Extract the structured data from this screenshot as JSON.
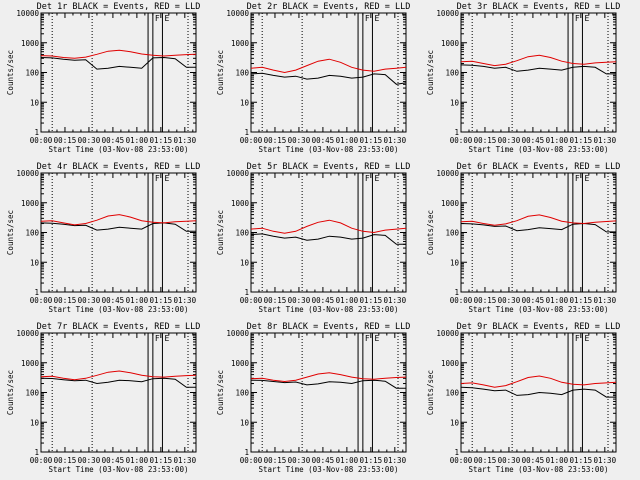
{
  "chart_data": [
    {
      "type": "line",
      "title": "Det 1r BLACK = Events, RED = LLD",
      "xlabel": "Start Time (03-Nov-08 23:53:00)",
      "ylabel": "Counts/sec",
      "log_y": true,
      "ylim": [
        1,
        10000
      ],
      "xlim_minutes": [
        0,
        97
      ],
      "x_ticks": [
        "00:00",
        "00:15",
        "00:30",
        "00:45",
        "01:00",
        "01:15",
        "01:30"
      ],
      "y_ticks": [
        "1",
        "10",
        "100",
        "1000",
        "10000"
      ],
      "markers": [
        "F",
        "E"
      ],
      "series": [
        {
          "color": "#000000",
          "x": [
            0,
            7,
            14,
            21,
            28,
            35,
            42,
            49,
            56,
            63,
            70,
            77,
            84,
            91,
            97
          ],
          "values": [
            320,
            310,
            280,
            260,
            270,
            130,
            140,
            160,
            150,
            140,
            310,
            320,
            290,
            150,
            150
          ]
        },
        {
          "color": "#e00000",
          "x": [
            0,
            7,
            14,
            21,
            28,
            35,
            42,
            49,
            56,
            63,
            70,
            77,
            84,
            91,
            97
          ],
          "values": [
            370,
            360,
            320,
            300,
            330,
            410,
            520,
            560,
            500,
            420,
            380,
            360,
            380,
            400,
            410
          ]
        }
      ]
    },
    {
      "type": "line",
      "title": "Det 2r BLACK = Events, RED = LLD",
      "xlabel": "Start Time (03-Nov-08 23:53:00)",
      "ylabel": "Counts/sec",
      "log_y": true,
      "ylim": [
        1,
        10000
      ],
      "xlim_minutes": [
        0,
        97
      ],
      "x_ticks": [
        "00:00",
        "00:15",
        "00:30",
        "00:45",
        "01:00",
        "01:15",
        "01:30"
      ],
      "y_ticks": [
        "1",
        "10",
        "100",
        "1000",
        "10000"
      ],
      "markers": [
        "F",
        "E"
      ],
      "series": [
        {
          "color": "#000000",
          "x": [
            0,
            7,
            14,
            21,
            28,
            35,
            42,
            49,
            56,
            63,
            70,
            77,
            84,
            91,
            97
          ],
          "values": [
            90,
            95,
            80,
            70,
            75,
            60,
            65,
            80,
            75,
            65,
            70,
            90,
            85,
            40,
            45
          ]
        },
        {
          "color": "#e00000",
          "x": [
            0,
            7,
            14,
            21,
            28,
            35,
            42,
            49,
            56,
            63,
            70,
            77,
            84,
            91,
            97
          ],
          "values": [
            140,
            150,
            120,
            100,
            120,
            170,
            240,
            280,
            220,
            150,
            120,
            110,
            130,
            140,
            150
          ]
        }
      ]
    },
    {
      "type": "line",
      "title": "Det 3r BLACK = Events, RED = LLD",
      "xlabel": "Start Time (03-Nov-08 23:53:00)",
      "ylabel": "Counts/sec",
      "log_y": true,
      "ylim": [
        1,
        10000
      ],
      "xlim_minutes": [
        0,
        97
      ],
      "x_ticks": [
        "00:00",
        "00:15",
        "00:30",
        "00:45",
        "01:00",
        "01:15",
        "01:30"
      ],
      "y_ticks": [
        "1",
        "10",
        "100",
        "1000",
        "10000"
      ],
      "markers": [
        "F",
        "E"
      ],
      "series": [
        {
          "color": "#000000",
          "x": [
            0,
            7,
            14,
            21,
            28,
            35,
            42,
            49,
            56,
            63,
            70,
            77,
            84,
            91,
            97
          ],
          "values": [
            180,
            175,
            160,
            140,
            150,
            110,
            120,
            140,
            130,
            120,
            150,
            160,
            150,
            90,
            90
          ]
        },
        {
          "color": "#e00000",
          "x": [
            0,
            7,
            14,
            21,
            28,
            35,
            42,
            49,
            56,
            63,
            70,
            77,
            84,
            91,
            97
          ],
          "values": [
            230,
            240,
            200,
            170,
            190,
            250,
            340,
            380,
            320,
            240,
            200,
            190,
            210,
            220,
            230
          ]
        }
      ]
    },
    {
      "type": "line",
      "title": "Det 4r BLACK = Events, RED = LLD",
      "xlabel": "Start Time (03-Nov-08 23:53:00)",
      "ylabel": "Counts/sec",
      "log_y": true,
      "ylim": [
        1,
        10000
      ],
      "xlim_minutes": [
        0,
        97
      ],
      "x_ticks": [
        "00:00",
        "00:15",
        "00:30",
        "00:45",
        "01:00",
        "01:15",
        "01:30"
      ],
      "y_ticks": [
        "1",
        "10",
        "100",
        "1000",
        "10000"
      ],
      "markers": [
        "F",
        "E"
      ],
      "series": [
        {
          "color": "#000000",
          "x": [
            0,
            7,
            14,
            21,
            28,
            35,
            42,
            49,
            56,
            63,
            70,
            77,
            84,
            91,
            97
          ],
          "values": [
            210,
            205,
            190,
            170,
            175,
            120,
            130,
            150,
            140,
            130,
            200,
            210,
            190,
            110,
            110
          ]
        },
        {
          "color": "#e00000",
          "x": [
            0,
            7,
            14,
            21,
            28,
            35,
            42,
            49,
            56,
            63,
            70,
            77,
            84,
            91,
            97
          ],
          "values": [
            240,
            250,
            210,
            180,
            200,
            260,
            360,
            400,
            330,
            250,
            220,
            210,
            230,
            240,
            250
          ]
        }
      ]
    },
    {
      "type": "line",
      "title": "Det 5r BLACK = Events, RED = LLD",
      "xlabel": "Start Time (03-Nov-08 23:53:00)",
      "ylabel": "Counts/sec",
      "log_y": true,
      "ylim": [
        1,
        10000
      ],
      "xlim_minutes": [
        0,
        97
      ],
      "x_ticks": [
        "00:00",
        "00:15",
        "00:30",
        "00:45",
        "01:00",
        "01:15",
        "01:30"
      ],
      "y_ticks": [
        "1",
        "10",
        "100",
        "1000",
        "10000"
      ],
      "markers": [
        "F",
        "E"
      ],
      "series": [
        {
          "color": "#000000",
          "x": [
            0,
            7,
            14,
            21,
            28,
            35,
            42,
            49,
            56,
            63,
            70,
            77,
            84,
            91,
            97
          ],
          "values": [
            85,
            90,
            75,
            65,
            70,
            55,
            60,
            75,
            70,
            60,
            65,
            85,
            80,
            40,
            40
          ]
        },
        {
          "color": "#e00000",
          "x": [
            0,
            7,
            14,
            21,
            28,
            35,
            42,
            49,
            56,
            63,
            70,
            77,
            84,
            91,
            97
          ],
          "values": [
            130,
            140,
            110,
            95,
            110,
            160,
            220,
            260,
            210,
            140,
            110,
            100,
            120,
            130,
            140
          ]
        }
      ]
    },
    {
      "type": "line",
      "title": "Det 6r BLACK = Events, RED = LLD",
      "xlabel": "Start Time (03-Nov-08 23:53:00)",
      "ylabel": "Counts/sec",
      "log_y": true,
      "ylim": [
        1,
        10000
      ],
      "xlim_minutes": [
        0,
        97
      ],
      "x_ticks": [
        "00:00",
        "00:15",
        "00:30",
        "00:45",
        "01:00",
        "01:15",
        "01:30"
      ],
      "y_ticks": [
        "1",
        "10",
        "100",
        "1000",
        "10000"
      ],
      "markers": [
        "F",
        "E"
      ],
      "series": [
        {
          "color": "#000000",
          "x": [
            0,
            7,
            14,
            21,
            28,
            35,
            42,
            49,
            56,
            63,
            70,
            77,
            84,
            91,
            97
          ],
          "values": [
            200,
            195,
            180,
            160,
            165,
            115,
            125,
            145,
            135,
            125,
            190,
            200,
            185,
            105,
            105
          ]
        },
        {
          "color": "#e00000",
          "x": [
            0,
            7,
            14,
            21,
            28,
            35,
            42,
            49,
            56,
            63,
            70,
            77,
            84,
            91,
            97
          ],
          "values": [
            230,
            240,
            200,
            175,
            195,
            250,
            350,
            390,
            320,
            240,
            210,
            200,
            220,
            235,
            245
          ]
        }
      ]
    },
    {
      "type": "line",
      "title": "Det 7r BLACK = Events, RED = LLD",
      "xlabel": "Start Time (03-Nov-08 23:53:00)",
      "ylabel": "Counts/sec",
      "log_y": true,
      "ylim": [
        1,
        10000
      ],
      "xlim_minutes": [
        0,
        97
      ],
      "x_ticks": [
        "00:00",
        "00:15",
        "00:30",
        "00:45",
        "01:00",
        "01:15",
        "01:30"
      ],
      "y_ticks": [
        "1",
        "10",
        "100",
        "1000",
        "10000"
      ],
      "markers": [
        "F",
        "E"
      ],
      "series": [
        {
          "color": "#000000",
          "x": [
            0,
            7,
            14,
            21,
            28,
            35,
            42,
            49,
            56,
            63,
            70,
            77,
            84,
            91,
            97
          ],
          "values": [
            300,
            295,
            270,
            250,
            260,
            200,
            220,
            260,
            250,
            230,
            290,
            300,
            280,
            150,
            150
          ]
        },
        {
          "color": "#e00000",
          "x": [
            0,
            7,
            14,
            21,
            28,
            35,
            42,
            49,
            56,
            63,
            70,
            77,
            84,
            91,
            97
          ],
          "values": [
            340,
            350,
            300,
            270,
            300,
            380,
            480,
            530,
            460,
            380,
            340,
            330,
            350,
            370,
            380
          ]
        }
      ]
    },
    {
      "type": "line",
      "title": "Det 8r BLACK = Events, RED = LLD",
      "xlabel": "Start Time (03-Nov-08 23:53:00)",
      "ylabel": "Counts/sec",
      "log_y": true,
      "ylim": [
        1,
        10000
      ],
      "xlim_minutes": [
        0,
        97
      ],
      "x_ticks": [
        "00:00",
        "00:15",
        "00:30",
        "00:45",
        "01:00",
        "01:15",
        "01:30"
      ],
      "y_ticks": [
        "1",
        "10",
        "100",
        "1000",
        "10000"
      ],
      "markers": [
        "F",
        "E"
      ],
      "series": [
        {
          "color": "#000000",
          "x": [
            0,
            7,
            14,
            21,
            28,
            35,
            42,
            49,
            56,
            63,
            70,
            77,
            84,
            91,
            97
          ],
          "values": [
            260,
            255,
            235,
            215,
            225,
            180,
            195,
            230,
            220,
            200,
            250,
            260,
            240,
            140,
            140
          ]
        },
        {
          "color": "#e00000",
          "x": [
            0,
            7,
            14,
            21,
            28,
            35,
            42,
            49,
            56,
            63,
            70,
            77,
            84,
            91,
            97
          ],
          "values": [
            290,
            300,
            260,
            235,
            260,
            330,
            420,
            460,
            400,
            330,
            290,
            280,
            300,
            320,
            330
          ]
        }
      ]
    },
    {
      "type": "line",
      "title": "Det 9r BLACK = Events, RED = LLD",
      "xlabel": "Start Time (03-Nov-08 23:53:00)",
      "ylabel": "Counts/sec",
      "log_y": true,
      "ylim": [
        1,
        10000
      ],
      "xlim_minutes": [
        0,
        97
      ],
      "x_ticks": [
        "00:00",
        "00:15",
        "00:30",
        "00:45",
        "01:00",
        "01:15",
        "01:30"
      ],
      "y_ticks": [
        "1",
        "10",
        "100",
        "1000",
        "10000"
      ],
      "markers": [
        "F",
        "E"
      ],
      "series": [
        {
          "color": "#000000",
          "x": [
            0,
            7,
            14,
            21,
            28,
            35,
            42,
            49,
            56,
            63,
            70,
            77,
            84,
            91,
            97
          ],
          "values": [
            150,
            145,
            130,
            115,
            120,
            80,
            85,
            100,
            95,
            85,
            120,
            130,
            120,
            70,
            70
          ]
        },
        {
          "color": "#e00000",
          "x": [
            0,
            7,
            14,
            21,
            28,
            35,
            42,
            49,
            56,
            63,
            70,
            77,
            84,
            91,
            97
          ],
          "values": [
            200,
            210,
            180,
            150,
            170,
            230,
            320,
            360,
            300,
            220,
            190,
            180,
            200,
            210,
            220
          ]
        }
      ]
    }
  ],
  "event_lines_minutes": [
    67,
    70,
    76
  ],
  "dotted_lines_minutes": [
    7,
    32,
    92
  ]
}
